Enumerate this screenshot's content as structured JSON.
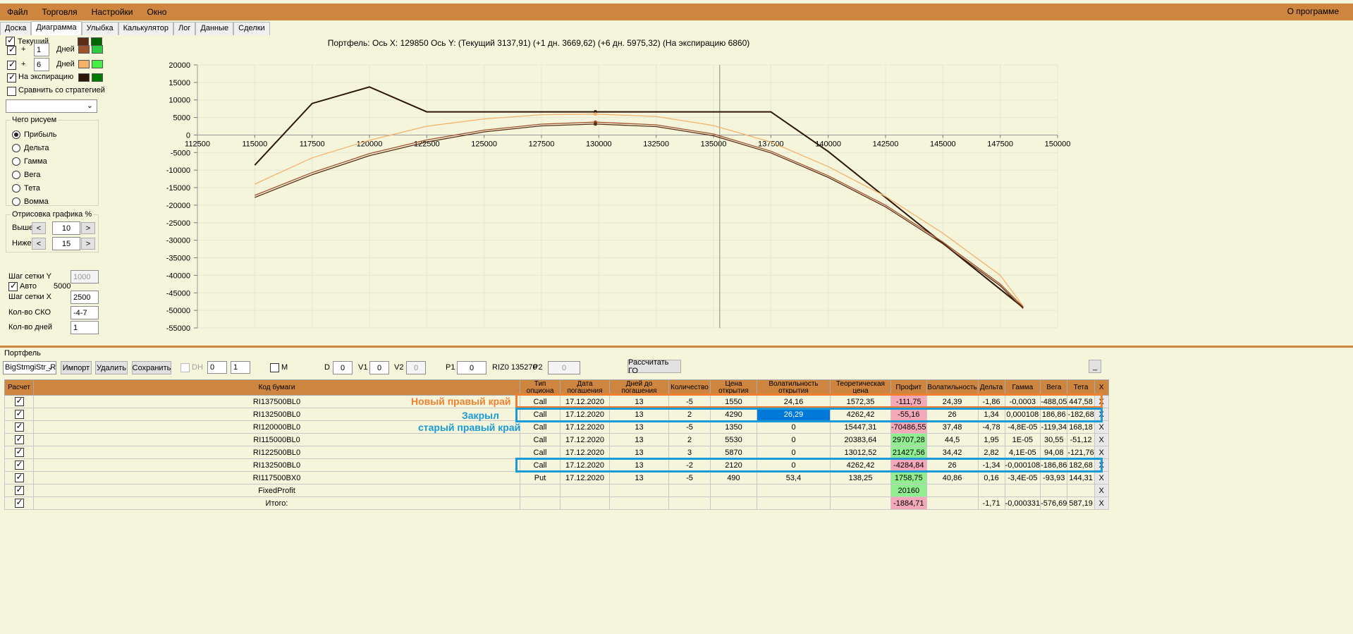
{
  "menu": [
    "Файл",
    "Торговля",
    "Настройки",
    "Окно"
  ],
  "menu_about": "О программе",
  "tabs": [
    "Доска",
    "Диаграмма",
    "Улыбка",
    "Калькулятор",
    "Лог",
    "Данные",
    "Сделки"
  ],
  "left": {
    "current_label": "Текущий",
    "plus": "+",
    "days_label": "Дней",
    "days1": "1",
    "days2": "6",
    "expiry_label": "На экспирацию",
    "compare_label": "Сравнить со стратегией",
    "what_title": "Чего рисуем",
    "what_options": [
      "Прибыль",
      "Дельта",
      "Гамма",
      "Вега",
      "Тета",
      "Вомма"
    ],
    "draw_title": "Отрисовка графика %",
    "above_label": "Выше",
    "above_value": "10",
    "below_label": "Ниже",
    "below_value": "15",
    "btn_less": "<",
    "btn_more": ">",
    "grid_y_label": "Шаг сетки Y",
    "grid_y_value": "1000",
    "auto_label": "Авто",
    "auto_value": "5000",
    "grid_x_label": "Шаг сетки X",
    "grid_x_value": "2500",
    "sko_label": "Кол-во СКО",
    "sko_value": "-4-7",
    "days_count_label": "Кол-во дней",
    "days_count_value": "1",
    "colors": {
      "current": [
        "#5a2d14",
        "#006400"
      ],
      "d1": [
        "#a0522d",
        "#2ecc40"
      ],
      "d6": [
        "#f4b26b",
        "#44ee44"
      ],
      "expiry": [
        "#2b1608",
        "#007a00"
      ]
    }
  },
  "chart_data": {
    "type": "line",
    "title": "Портфель: Ось Х:  129850 Ось Y:   (Текущий 3137,91)  (+1 дн. 3669,62)  (+6 дн. 5975,32)  (На экспирацию 6860)",
    "xlim": [
      112500,
      150000
    ],
    "ylim": [
      -55000,
      20000
    ],
    "x_ticks": [
      112500,
      115000,
      117500,
      120000,
      122500,
      125000,
      127500,
      130000,
      132500,
      135000,
      137500,
      140000,
      142500,
      145000,
      147500,
      150000
    ],
    "y_ticks": [
      20000,
      15000,
      10000,
      5000,
      0,
      -5000,
      -10000,
      -15000,
      -20000,
      -25000,
      -30000,
      -35000,
      -40000,
      -45000,
      -50000,
      -55000
    ],
    "cursor_x": 135270,
    "marker_x": 129850,
    "series": [
      {
        "color": "#2b1608",
        "x": [
          115000,
          117500,
          120000,
          122500,
          137500,
          140000,
          148500
        ],
        "y": [
          -8600,
          9000,
          13700,
          6600,
          6600,
          -4700,
          -49200
        ]
      },
      {
        "color": "#f4b26b",
        "x": [
          115000,
          117500,
          120000,
          122500,
          125000,
          127500,
          129850,
          132500,
          135000,
          137500,
          140000,
          142500,
          145000,
          147500,
          148500
        ],
        "y": [
          -14000,
          -6500,
          -1500,
          2500,
          4600,
          5800,
          5975,
          5300,
          2700,
          -2000,
          -9000,
          -17500,
          -28000,
          -40000,
          -48800
        ]
      },
      {
        "color": "#a0522d",
        "x": [
          115000,
          117500,
          120000,
          122500,
          125000,
          127500,
          129850,
          132500,
          135000,
          137500,
          140000,
          142500,
          145000,
          147500,
          148500
        ],
        "y": [
          -17200,
          -10700,
          -5300,
          -1400,
          1400,
          3100,
          3670,
          2900,
          300,
          -4600,
          -11600,
          -20000,
          -30500,
          -42500,
          -49000
        ]
      },
      {
        "color": "#5a2d14",
        "x": [
          115000,
          117500,
          120000,
          122500,
          125000,
          127500,
          129850,
          132500,
          135000,
          137500,
          140000,
          142500,
          145000,
          147500,
          148500
        ],
        "y": [
          -17800,
          -11300,
          -5900,
          -2000,
          900,
          2600,
          3138,
          2400,
          -200,
          -5100,
          -12100,
          -20500,
          -31000,
          -43000,
          -49500
        ]
      }
    ]
  },
  "portfolio_label": "Портфель",
  "toolbar": {
    "strategy": "BigStmgiStr_R",
    "import": "Импорт",
    "delete": "Удалить",
    "save": "Сохранить",
    "dh": "DH",
    "spin1": "0",
    "spin2": "1",
    "m": "M",
    "d_label": "D",
    "d_value": "0",
    "v1_label": "V1",
    "v1_value": "0",
    "v2_label": "V2",
    "v2_value": "0",
    "p1_label": "P1",
    "p1_value": "0",
    "riz": "RIZ0 135270",
    "p2_label": "P2",
    "p2_value": "0",
    "calc": "Рассчитать ГО",
    "minimize": "_"
  },
  "table": {
    "headers": [
      "Расчет",
      "Код бумаги",
      "Тип опциона",
      "Дата погашения",
      "Дней до погашения",
      "Количество",
      "Цена открытия",
      "Волатильность открытия",
      "Теоретическая цена",
      "Профит",
      "Волатильность",
      "Дельта",
      "Гамма",
      "Вега",
      "Тета",
      "X"
    ],
    "rows": [
      [
        "RI137500BL0",
        "Call",
        "17.12.2020",
        "13",
        "-5",
        "1550",
        "24,16",
        "1572,35",
        "-111,75",
        "24,39",
        "-1,86",
        "-0,0003",
        "-488,05",
        "447,58",
        "X"
      ],
      [
        "RI132500BL0",
        "Call",
        "17.12.2020",
        "13",
        "2",
        "4290",
        "26,29",
        "4262,42",
        "-55,16",
        "26",
        "1,34",
        "0,000108",
        "186,86",
        "-182,68",
        "X"
      ],
      [
        "RI120000BL0",
        "Call",
        "17.12.2020",
        "13",
        "-5",
        "1350",
        "0",
        "15447,31",
        "-70486,55",
        "37,48",
        "-4,78",
        "-4,8E-05",
        "-119,34",
        "168,18",
        "X"
      ],
      [
        "RI115000BL0",
        "Call",
        "17.12.2020",
        "13",
        "2",
        "5530",
        "0",
        "20383,64",
        "29707,28",
        "44,5",
        "1,95",
        "1E-05",
        "30,55",
        "-51,12",
        "X"
      ],
      [
        "RI122500BL0",
        "Call",
        "17.12.2020",
        "13",
        "3",
        "5870",
        "0",
        "13012,52",
        "21427,56",
        "34,42",
        "2,82",
        "4,1E-05",
        "94,08",
        "-121,76",
        "X"
      ],
      [
        "RI132500BL0",
        "Call",
        "17.12.2020",
        "13",
        "-2",
        "2120",
        "0",
        "4262,42",
        "-4284,84",
        "26",
        "-1,34",
        "-0,000108",
        "-186,86",
        "182,68",
        "X"
      ],
      [
        "RI117500BX0",
        "Put",
        "17.12.2020",
        "13",
        "-5",
        "490",
        "53,4",
        "138,25",
        "1758,75",
        "40,86",
        "0,16",
        "-3,4E-05",
        "-93,93",
        "144,31",
        "X"
      ],
      [
        "FixedProfit",
        "",
        "",
        "",
        "",
        "",
        "",
        "",
        "20160",
        "",
        "",
        "",
        "",
        "",
        "X"
      ],
      [
        "Итого:",
        "",
        "",
        "",
        "",
        "",
        "",
        "",
        "-1884,71",
        "",
        "-1,71",
        "-0,000331",
        "-576,69",
        "587,19",
        "X"
      ]
    ],
    "profit_colors": [
      "pink",
      "pink",
      "pink",
      "green",
      "green",
      "pink",
      "green",
      "green",
      "pink"
    ]
  },
  "annotations": {
    "new_right": "Новый правый край",
    "closed_line1": "Закрыл",
    "closed_line2": "старый правый край"
  }
}
